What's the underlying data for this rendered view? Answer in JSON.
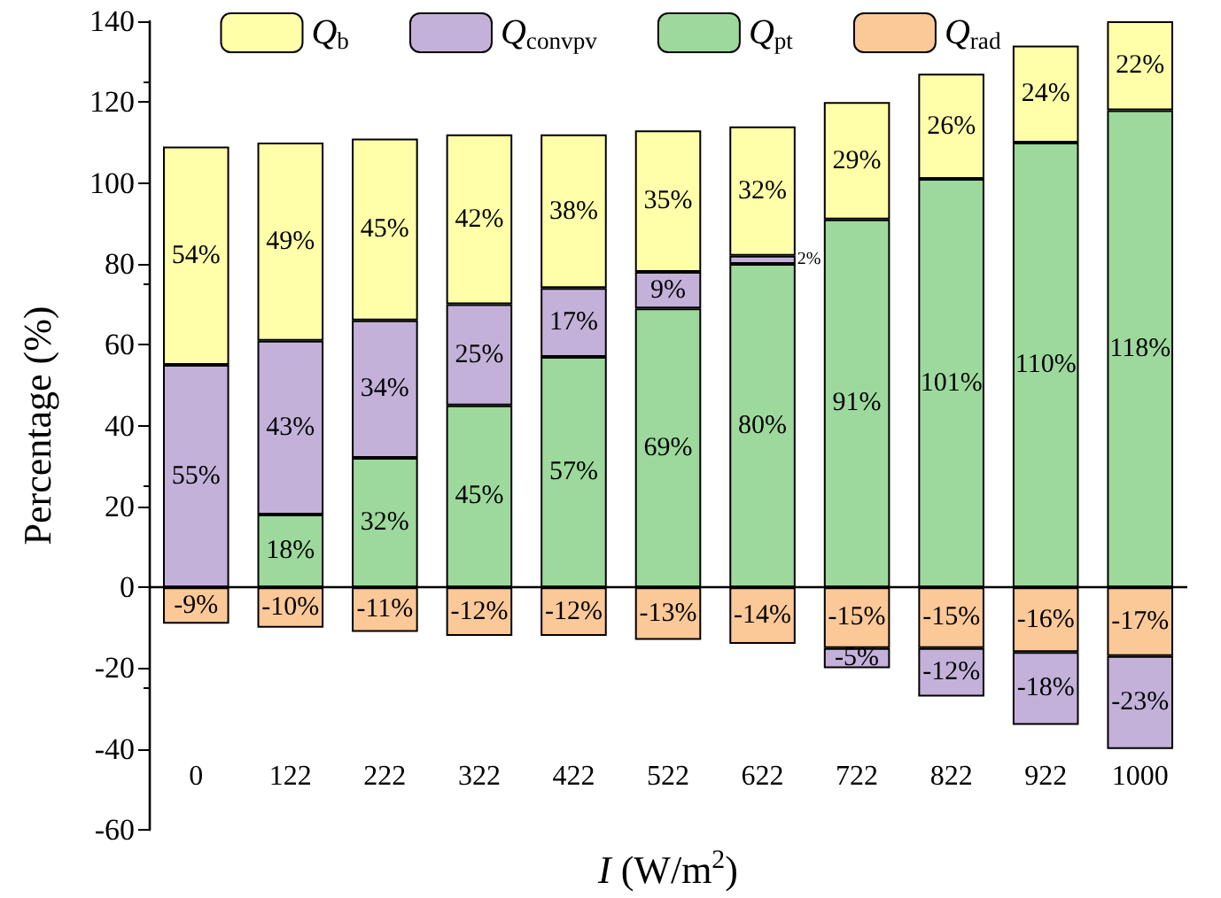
{
  "chart_data": {
    "type": "bar",
    "stacked": true,
    "xlabel": "I (W/m$^{2}$)",
    "ylabel": "Percentage (%)",
    "categories": [
      "0",
      "122",
      "222",
      "322",
      "422",
      "522",
      "622",
      "722",
      "822",
      "922",
      "1000"
    ],
    "series": [
      {
        "name": "Q$_{rad}$",
        "color": "#fbc898",
        "values": [
          -9,
          -10,
          -11,
          -12,
          -12,
          -13,
          -14,
          -15,
          -15,
          -16,
          -17
        ],
        "value_labels": [
          "-9%",
          "-10%",
          "-11%",
          "-12%",
          "-12%",
          "-13%",
          "-14%",
          "-15%",
          "-15%",
          "-16%",
          "-17%"
        ]
      },
      {
        "name": "Q$_{pt}$",
        "color": "#9dd99c",
        "values": [
          null,
          18,
          32,
          45,
          57,
          69,
          80,
          91,
          101,
          110,
          118
        ],
        "value_labels": [
          null,
          "18%",
          "32%",
          "45%",
          "57%",
          "69%",
          "80%",
          "91%",
          "101%",
          "110%",
          "118%"
        ]
      },
      {
        "name": "Q$_{convpv}$",
        "color": "#c3b1da",
        "values": [
          55,
          43,
          34,
          25,
          17,
          9,
          2,
          -5,
          -12,
          -18,
          -23
        ],
        "value_labels": [
          "55%",
          "43%",
          "34%",
          "25%",
          "17%",
          "9%",
          "2%",
          "-5%",
          "-12%",
          "-18%",
          "-23%"
        ]
      },
      {
        "name": "Q$_{b}$",
        "color": "#ffffaa",
        "values": [
          54,
          49,
          45,
          42,
          38,
          35,
          32,
          29,
          26,
          24,
          22
        ],
        "value_labels": [
          "54%",
          "49%",
          "45%",
          "42%",
          "38%",
          "35%",
          "32%",
          "29%",
          "26%",
          "24%",
          "22%"
        ]
      }
    ],
    "ylim": [
      -60,
      140
    ],
    "yticks": [
      -60,
      -40,
      -20,
      0,
      20,
      40,
      60,
      80,
      100,
      120,
      140
    ],
    "ref_lines": [
      {
        "axis": "y",
        "value": 0
      }
    ],
    "grid": false,
    "legend": "top"
  }
}
